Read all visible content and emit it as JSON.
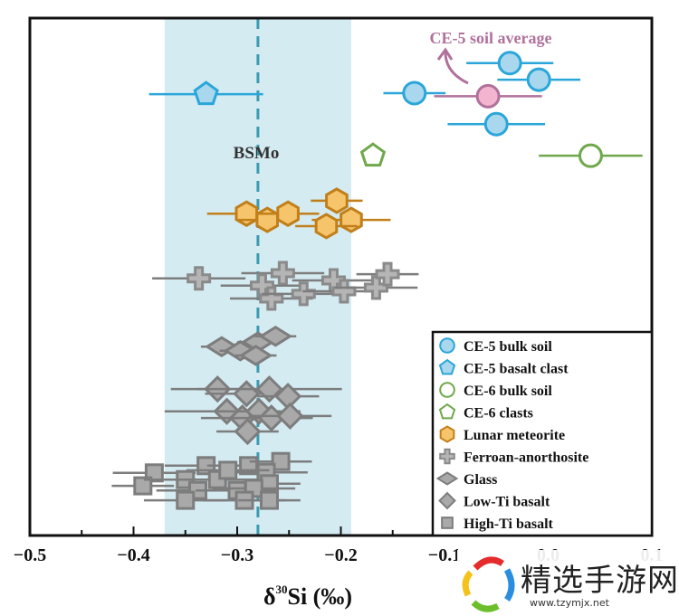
{
  "chart_data": {
    "type": "scatter",
    "title": "",
    "xlabel_main": "δ",
    "xlabel_sup": "30",
    "xlabel_rest": "Si (‰)",
    "xlim": [
      -0.5,
      0.1
    ],
    "ylim": [
      0,
      100
    ],
    "xticks": [
      -0.5,
      -0.4,
      -0.3,
      -0.2,
      -0.1,
      0.0,
      0.1
    ],
    "xtick_labels": [
      "−0.5",
      "−0.4",
      "−0.3",
      "−0.2",
      "−0.1",
      "0.0",
      "0.1"
    ],
    "grid": false,
    "reference": {
      "label": "BSMo",
      "value": -0.28,
      "band": [
        -0.37,
        -0.19
      ],
      "line_color": "#3a9bb0",
      "band_color": "#d4ebf2"
    },
    "annotation": {
      "label": "CE-5 soil average",
      "color": "#b0719b"
    },
    "legend_position": "bottom-right",
    "series": [
      {
        "name": "CE-5 bulk soil",
        "marker": "circle",
        "fill": "#a9d8ee",
        "stroke": "#2aa6d9",
        "points": [
          [
            -0.037,
            91.3,
            0.042
          ],
          [
            -0.009,
            88.1,
            0.04
          ],
          [
            -0.129,
            85.5,
            0.03
          ],
          [
            -0.05,
            79.5,
            0.047
          ]
        ]
      },
      {
        "name": "CE-5 soil average",
        "marker": "circle",
        "fill": "#f2b4cf",
        "stroke": "#b0719b",
        "in_legend": false,
        "points": [
          [
            -0.058,
            84.9,
            0.052
          ]
        ]
      },
      {
        "name": "CE-5 basalt clast",
        "marker": "pentagon",
        "fill": "#a9d8ee",
        "stroke": "#2aa6d9",
        "points": [
          [
            -0.33,
            85.3,
            0.055
          ]
        ]
      },
      {
        "name": "CE-6 bulk soil",
        "marker": "circle",
        "fill": "#ffffff",
        "stroke": "#6fa84a",
        "points": [
          [
            0.041,
            73.4,
            0.05
          ]
        ]
      },
      {
        "name": "CE-6 clasts",
        "marker": "pentagon",
        "fill": "#ffffff",
        "stroke": "#6fa84a",
        "points": [
          [
            -0.169,
            73.4,
            0
          ]
        ]
      },
      {
        "name": "Lunar meteorite",
        "marker": "hexagon",
        "fill": "#f6c46a",
        "stroke": "#c17f1a",
        "points": [
          [
            -0.291,
            62.2,
            0.038
          ],
          [
            -0.271,
            61.0,
            0.03
          ],
          [
            -0.251,
            62.2,
            0.03
          ],
          [
            -0.204,
            64.7,
            0.025
          ],
          [
            -0.19,
            61.0,
            0.038
          ],
          [
            -0.214,
            59.8,
            0.03
          ]
        ]
      },
      {
        "name": "Ferroan-anorthosite",
        "marker": "cross",
        "fill": "#b5b5b5",
        "stroke": "#8a8a8a",
        "points": [
          [
            -0.337,
            49.7,
            0.045
          ],
          [
            -0.256,
            50.7,
            0.04
          ],
          [
            -0.276,
            48.3,
            0.04
          ],
          [
            -0.267,
            45.8,
            0.04
          ],
          [
            -0.236,
            46.7,
            0.04
          ],
          [
            -0.207,
            49.3,
            0.04
          ],
          [
            -0.197,
            47.2,
            0.04
          ],
          [
            -0.166,
            47.9,
            0.04
          ],
          [
            -0.155,
            50.5,
            0.03
          ]
        ]
      },
      {
        "name": "Glass",
        "marker": "diamond-flat",
        "fill": "#a9a9a9",
        "stroke": "#7d7d7d",
        "points": [
          [
            -0.315,
            36.5,
            0.02
          ],
          [
            -0.297,
            35.7,
            0.02
          ],
          [
            -0.28,
            37.4,
            0.02
          ],
          [
            -0.263,
            38.5,
            0.02
          ],
          [
            -0.282,
            34.8,
            0.02
          ]
        ]
      },
      {
        "name": "Low-Ti basalt",
        "marker": "diamond",
        "fill": "#a9a9a9",
        "stroke": "#7d7d7d",
        "points": [
          [
            -0.319,
            28.3,
            0.045
          ],
          [
            -0.291,
            27.4,
            0.04
          ],
          [
            -0.269,
            28.3,
            0.07
          ],
          [
            -0.251,
            26.9,
            0.03
          ],
          [
            -0.31,
            24.0,
            0.06
          ],
          [
            -0.295,
            22.7,
            0.04
          ],
          [
            -0.279,
            24.0,
            0.04
          ],
          [
            -0.267,
            22.7,
            0.04
          ],
          [
            -0.249,
            23.1,
            0.04
          ],
          [
            -0.29,
            20.1,
            0.03
          ]
        ]
      },
      {
        "name": "High-Ti basalt",
        "marker": "square",
        "fill": "#a9a9a9",
        "stroke": "#7d7d7d",
        "points": [
          [
            -0.38,
            12.1,
            0.04
          ],
          [
            -0.33,
            13.5,
            0.04
          ],
          [
            -0.289,
            13.5,
            0.04
          ],
          [
            -0.258,
            14.3,
            0.03
          ],
          [
            -0.272,
            12.2,
            0.04
          ],
          [
            -0.391,
            9.6,
            0.03
          ],
          [
            -0.35,
            10.8,
            0.04
          ],
          [
            -0.319,
            10.8,
            0.04
          ],
          [
            -0.309,
            12.6,
            0.04
          ],
          [
            -0.269,
            10.0,
            0.03
          ],
          [
            -0.338,
            8.7,
            0.04
          ],
          [
            -0.3,
            8.7,
            0.04
          ],
          [
            -0.284,
            9.1,
            0.04
          ],
          [
            -0.35,
            6.8,
            0.04
          ],
          [
            -0.293,
            6.8,
            0.04
          ],
          [
            -0.269,
            6.8,
            0.03
          ]
        ]
      }
    ]
  },
  "watermark": {
    "title": "精选手游网",
    "url": "www.tzymjx.net"
  }
}
